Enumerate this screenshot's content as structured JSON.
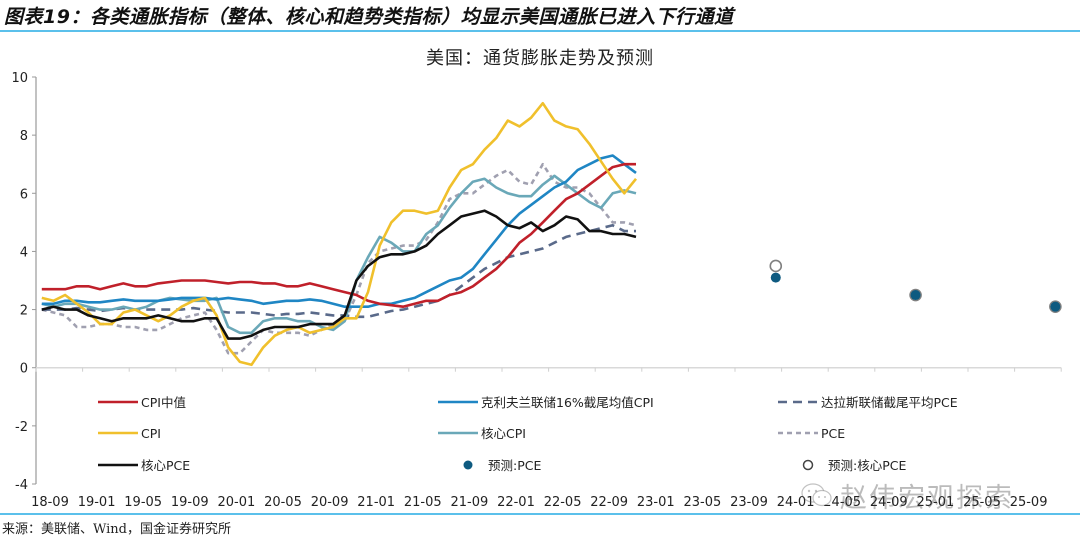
{
  "figure_title": "图表19：各类通胀指标（整体、核心和趋势类指标）均显示美国通胀已进入下行通道",
  "source": "来源：美联储、Wind，国金证券研究所",
  "watermark": "赵伟宏观探索",
  "chart_data": {
    "type": "line",
    "title": "美国：通货膨胀走势及预测",
    "xlabel": "",
    "ylabel": "",
    "ylim": [
      -4,
      10
    ],
    "yticks": [
      "10",
      "8",
      "6",
      "4",
      "2",
      "0",
      "-2",
      "-4"
    ],
    "ytick_values": [
      10,
      8,
      6,
      4,
      2,
      0,
      -2,
      -4
    ],
    "xtick_labels": [
      "18-09",
      "19-01",
      "19-05",
      "19-09",
      "20-01",
      "20-05",
      "20-09",
      "21-01",
      "21-05",
      "21-09",
      "22-01",
      "22-05",
      "22-09",
      "23-01",
      "23-05",
      "23-09",
      "24-01",
      "24-05",
      "24-09",
      "25-01",
      "25-05",
      "25-09"
    ],
    "x_start": "2018-09",
    "x_end": "2025-12",
    "x_unit": "month",
    "grid": false,
    "legend_position": "bottom-inside",
    "series": [
      {
        "name": "CPI中值",
        "color": "#c0202a",
        "style": "solid",
        "values": [
          2.7,
          2.7,
          2.7,
          2.8,
          2.8,
          2.7,
          2.8,
          2.9,
          2.8,
          2.8,
          2.9,
          2.95,
          3.0,
          3.0,
          3.0,
          2.95,
          2.9,
          2.95,
          2.95,
          2.9,
          2.9,
          2.8,
          2.8,
          2.9,
          2.8,
          2.7,
          2.6,
          2.5,
          2.3,
          2.2,
          2.15,
          2.1,
          2.2,
          2.3,
          2.3,
          2.5,
          2.6,
          2.8,
          3.1,
          3.4,
          3.8,
          4.3,
          4.6,
          5.0,
          5.4,
          5.8,
          6.0,
          6.3,
          6.6,
          6.9,
          7.0,
          7.0
        ]
      },
      {
        "name": "克利夫兰联储16%截尾均值CPI",
        "color": "#1f86c4",
        "style": "solid",
        "values": [
          2.2,
          2.2,
          2.3,
          2.3,
          2.25,
          2.25,
          2.3,
          2.35,
          2.3,
          2.3,
          2.3,
          2.35,
          2.4,
          2.4,
          2.4,
          2.35,
          2.4,
          2.35,
          2.3,
          2.2,
          2.25,
          2.3,
          2.3,
          2.35,
          2.3,
          2.2,
          2.1,
          2.1,
          2.1,
          2.2,
          2.2,
          2.3,
          2.4,
          2.6,
          2.8,
          3.0,
          3.1,
          3.4,
          3.9,
          4.4,
          4.9,
          5.3,
          5.6,
          5.9,
          6.2,
          6.4,
          6.8,
          7.0,
          7.2,
          7.3,
          7.0,
          6.7
        ]
      },
      {
        "name": "达拉斯联储截尾平均PCE",
        "color": "#5a6a8a",
        "style": "dash-long",
        "values": [
          2.0,
          2.0,
          2.0,
          2.05,
          2.0,
          1.95,
          2.0,
          2.05,
          2.0,
          2.0,
          2.0,
          2.0,
          2.0,
          2.05,
          2.0,
          1.95,
          1.9,
          1.9,
          1.9,
          1.85,
          1.8,
          1.85,
          1.85,
          1.9,
          1.85,
          1.8,
          1.8,
          1.75,
          1.75,
          1.85,
          1.95,
          2.0,
          2.1,
          2.2,
          2.3,
          2.5,
          2.8,
          3.1,
          3.4,
          3.6,
          3.8,
          3.9,
          4.0,
          4.1,
          4.3,
          4.5,
          4.6,
          4.7,
          4.8,
          4.9,
          4.7,
          4.7
        ]
      },
      {
        "name": "CPI",
        "color": "#f0c02c",
        "style": "solid",
        "values": [
          2.4,
          2.3,
          2.5,
          2.2,
          1.9,
          1.5,
          1.5,
          1.9,
          2.0,
          1.8,
          1.6,
          1.8,
          2.1,
          2.3,
          2.4,
          1.8,
          0.7,
          0.2,
          0.1,
          0.7,
          1.1,
          1.3,
          1.4,
          1.2,
          1.3,
          1.4,
          1.7,
          1.7,
          2.6,
          4.2,
          5.0,
          5.4,
          5.4,
          5.3,
          5.4,
          6.2,
          6.8,
          7.0,
          7.5,
          7.9,
          8.5,
          8.3,
          8.6,
          9.1,
          8.5,
          8.3,
          8.2,
          7.7,
          7.1,
          6.5,
          6.0,
          6.5
        ]
      },
      {
        "name": "核心CPI",
        "color": "#6aa8b8",
        "style": "solid",
        "values": [
          2.2,
          2.1,
          2.2,
          2.2,
          2.1,
          2.0,
          2.0,
          2.1,
          2.0,
          2.1,
          2.3,
          2.4,
          2.35,
          2.3,
          2.3,
          2.4,
          1.4,
          1.2,
          1.2,
          1.6,
          1.7,
          1.7,
          1.6,
          1.6,
          1.4,
          1.3,
          1.6,
          3.0,
          3.8,
          4.5,
          4.3,
          4.0,
          4.0,
          4.6,
          4.9,
          5.5,
          6.0,
          6.4,
          6.5,
          6.2,
          6.0,
          5.9,
          5.9,
          6.3,
          6.6,
          6.3,
          6.0,
          5.7,
          5.5,
          6.0,
          6.1,
          6.0
        ]
      },
      {
        "name": "PCE",
        "color": "#a0a0b0",
        "style": "dash-short",
        "values": [
          2.0,
          1.9,
          1.8,
          1.4,
          1.4,
          1.5,
          1.5,
          1.4,
          1.4,
          1.3,
          1.3,
          1.5,
          1.7,
          1.8,
          1.9,
          1.3,
          0.5,
          0.5,
          0.9,
          1.3,
          1.2,
          1.2,
          1.2,
          1.1,
          1.3,
          1.5,
          1.6,
          2.5,
          3.6,
          4.0,
          4.1,
          4.2,
          4.2,
          4.4,
          5.0,
          5.8,
          6.0,
          6.0,
          6.3,
          6.6,
          6.8,
          6.4,
          6.3,
          7.0,
          6.4,
          6.2,
          6.2,
          6.0,
          5.5,
          5.0,
          5.0,
          4.9
        ]
      },
      {
        "name": "核心PCE",
        "color": "#111111",
        "style": "solid",
        "values": [
          2.0,
          2.1,
          2.0,
          2.0,
          1.8,
          1.7,
          1.6,
          1.7,
          1.7,
          1.7,
          1.8,
          1.7,
          1.6,
          1.6,
          1.7,
          1.7,
          1.0,
          1.0,
          1.1,
          1.3,
          1.4,
          1.4,
          1.4,
          1.5,
          1.5,
          1.5,
          1.8,
          3.0,
          3.5,
          3.8,
          3.9,
          3.9,
          4.0,
          4.2,
          4.6,
          4.9,
          5.2,
          5.3,
          5.4,
          5.2,
          4.9,
          4.8,
          5.0,
          4.7,
          4.9,
          5.2,
          5.1,
          4.7,
          4.7,
          4.6,
          4.6,
          4.5
        ]
      },
      {
        "name": "预测:PCE",
        "color": "#0e5a80",
        "style": "dot-filled",
        "points": [
          {
            "x": "2023-12",
            "y": 3.1
          },
          {
            "x": "2024-12",
            "y": 2.5
          },
          {
            "x": "2025-12",
            "y": 2.1
          }
        ]
      },
      {
        "name": "预测:核心PCE",
        "color": "#808080",
        "style": "dot-hollow",
        "points": [
          {
            "x": "2023-12",
            "y": 3.5
          },
          {
            "x": "2024-12",
            "y": 2.5
          },
          {
            "x": "2025-12",
            "y": 2.1
          }
        ]
      }
    ],
    "legend": [
      {
        "label": "CPI中值",
        "series": 0
      },
      {
        "label": "克利夫兰联储16%截尾均值CPI",
        "series": 1
      },
      {
        "label": "达拉斯联储截尾平均PCE",
        "series": 2
      },
      {
        "label": "CPI",
        "series": 3
      },
      {
        "label": "核心CPI",
        "series": 4
      },
      {
        "label": "PCE",
        "series": 5
      },
      {
        "label": "核心PCE",
        "series": 6
      },
      {
        "label": "预测:PCE",
        "series": 7
      },
      {
        "label": "预测:核心PCE",
        "series": 8
      }
    ]
  }
}
